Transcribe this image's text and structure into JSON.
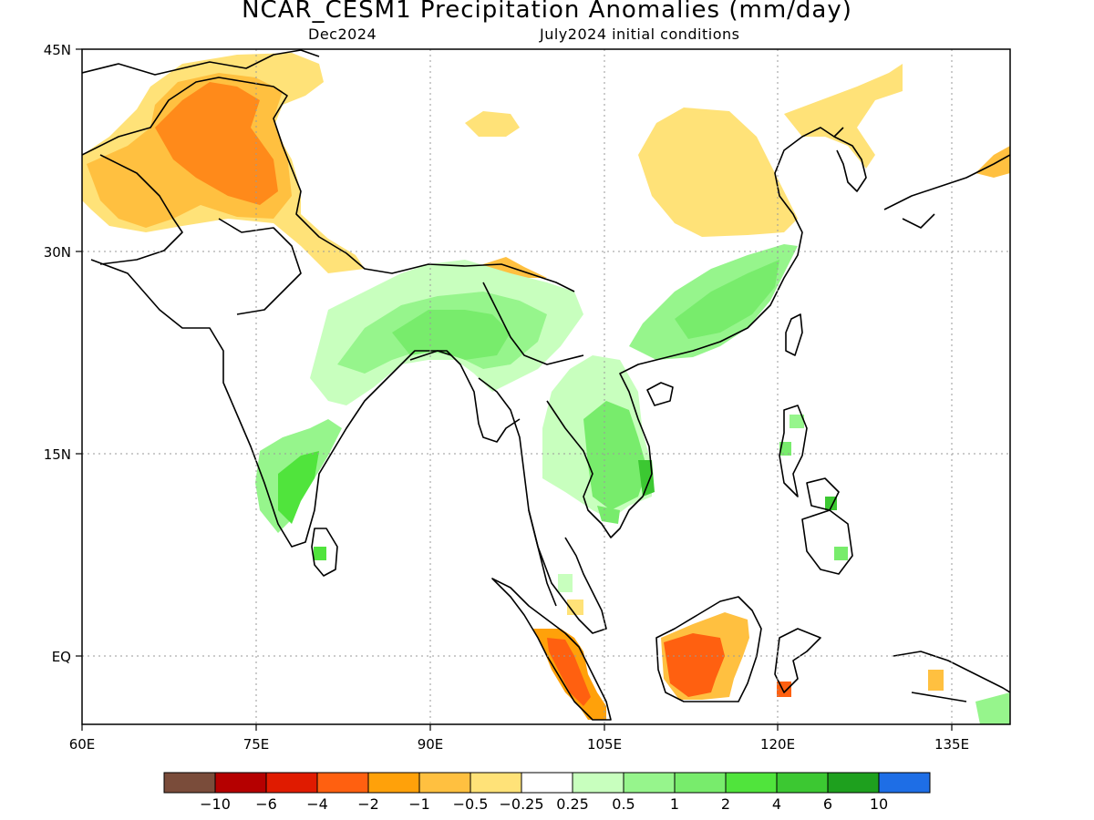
{
  "title": "NCAR_CESM1 Precipitation Anomalies (mm/day)",
  "subtitle_left": "Dec2024",
  "subtitle_right": "July2024 initial conditions",
  "map": {
    "lon_range": [
      60,
      140
    ],
    "lat_range": [
      -5,
      45
    ],
    "x_ticks": [
      {
        "value": 60,
        "label": "60E"
      },
      {
        "value": 75,
        "label": "75E"
      },
      {
        "value": 90,
        "label": "90E"
      },
      {
        "value": 105,
        "label": "105E"
      },
      {
        "value": 120,
        "label": "120E"
      },
      {
        "value": 135,
        "label": "135E"
      }
    ],
    "y_ticks": [
      {
        "value": 45,
        "label": "45N"
      },
      {
        "value": 30,
        "label": "30N"
      },
      {
        "value": 15,
        "label": "15N"
      },
      {
        "value": 0,
        "label": "EQ"
      }
    ],
    "grid": "dotted",
    "variable": "precipitation anomaly",
    "units": "mm/day"
  },
  "colorbar": {
    "colors": [
      "#7a4c3a",
      "#b50000",
      "#e01b00",
      "#ff6010",
      "#ffa10a",
      "#ffc040",
      "#ffe278",
      "#ffffff",
      "#c8ffbe",
      "#96f58c",
      "#78ec6c",
      "#50e43c",
      "#3cc832",
      "#1ea01e",
      "#1e6ee6"
    ],
    "labels": [
      "−10",
      "−6",
      "−4",
      "−2",
      "−1",
      "−0.5",
      "−0.25",
      "0.25",
      "0.5",
      "1",
      "2",
      "4",
      "6",
      "10"
    ]
  },
  "anomaly_regions": [
    {
      "name": "central-asia-afghanistan-pakistan",
      "level": "-1",
      "color": "#ffc040"
    },
    {
      "name": "northwest-himalaya-core",
      "level": "-2",
      "color": "#ff6010"
    },
    {
      "name": "north-china-plain",
      "level": "-0.5",
      "color": "#ffe278"
    },
    {
      "name": "eastern-india-bangladesh",
      "level": "1",
      "color": "#78ec6c"
    },
    {
      "name": "southeast-china",
      "level": "1",
      "color": "#78ec6c"
    },
    {
      "name": "indochina",
      "level": "1",
      "color": "#78ec6c"
    },
    {
      "name": "south-india",
      "level": "2",
      "color": "#50e43c"
    },
    {
      "name": "sumatra",
      "level": "-2",
      "color": "#ff6010"
    },
    {
      "name": "borneo",
      "level": "-2",
      "color": "#ff6010"
    }
  ]
}
